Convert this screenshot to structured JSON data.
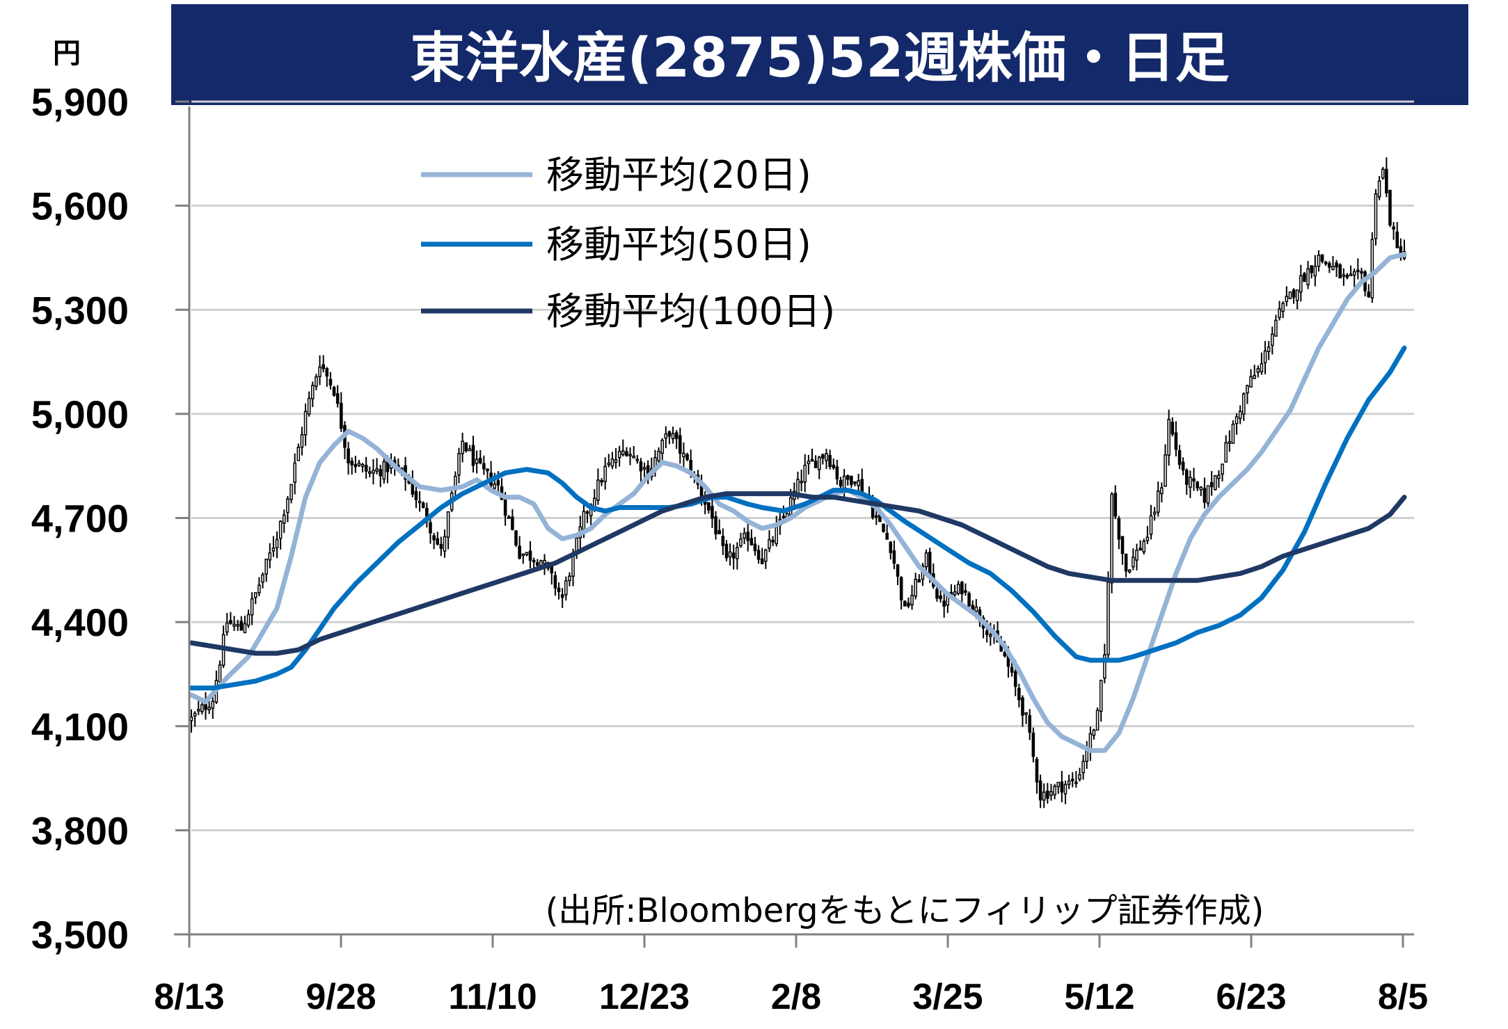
{
  "chart_data": {
    "type": "candlestick",
    "title": "東洋水産(2875)52週株価・日足",
    "ylabel": "円",
    "source": "(出所:Bloombergをもとにフィリップ証券作成)",
    "ylim": [
      3500,
      5900
    ],
    "yticks": [
      3500,
      3800,
      4100,
      4400,
      4700,
      5000,
      5300,
      5600,
      5900
    ],
    "ytick_labels": [
      "3,500",
      "3,800",
      "4,100",
      "4,400",
      "4,700",
      "5,000",
      "5,300",
      "5,600",
      "5,900"
    ],
    "x_tick_labels": [
      "8/13",
      "9/28",
      "11/10",
      "12/23",
      "2/8",
      "3/25",
      "5/12",
      "6/23",
      "8/5"
    ],
    "grid": true,
    "candles": {
      "name": "daily",
      "color": "#000000",
      "anchors": [
        [
          0,
          4120
        ],
        [
          6,
          4180
        ],
        [
          10,
          4400
        ],
        [
          14,
          4380
        ],
        [
          18,
          4480
        ],
        [
          24,
          4650
        ],
        [
          28,
          4800
        ],
        [
          32,
          5000
        ],
        [
          36,
          5150
        ],
        [
          40,
          5070
        ],
        [
          44,
          4870
        ],
        [
          50,
          4830
        ],
        [
          56,
          4850
        ],
        [
          60,
          4820
        ],
        [
          66,
          4700
        ],
        [
          70,
          4600
        ],
        [
          76,
          4920
        ],
        [
          80,
          4850
        ],
        [
          86,
          4790
        ],
        [
          92,
          4600
        ],
        [
          98,
          4580
        ],
        [
          104,
          4470
        ],
        [
          110,
          4700
        ],
        [
          116,
          4840
        ],
        [
          122,
          4900
        ],
        [
          128,
          4830
        ],
        [
          134,
          4950
        ],
        [
          140,
          4840
        ],
        [
          146,
          4700
        ],
        [
          150,
          4570
        ],
        [
          156,
          4650
        ],
        [
          160,
          4580
        ],
        [
          166,
          4700
        ],
        [
          172,
          4840
        ],
        [
          178,
          4890
        ],
        [
          182,
          4800
        ],
        [
          186,
          4820
        ],
        [
          192,
          4700
        ],
        [
          196,
          4620
        ],
        [
          200,
          4430
        ],
        [
          206,
          4580
        ],
        [
          210,
          4450
        ],
        [
          216,
          4500
        ],
        [
          222,
          4400
        ],
        [
          228,
          4300
        ],
        [
          234,
          4120
        ],
        [
          238,
          3900
        ],
        [
          244,
          3930
        ],
        [
          248,
          3940
        ],
        [
          254,
          4130
        ],
        [
          256,
          4300
        ],
        [
          258,
          4760
        ],
        [
          262,
          4550
        ],
        [
          268,
          4650
        ],
        [
          272,
          4800
        ],
        [
          274,
          4980
        ],
        [
          278,
          4820
        ],
        [
          284,
          4760
        ],
        [
          288,
          4840
        ],
        [
          292,
          4960
        ],
        [
          296,
          5080
        ],
        [
          300,
          5140
        ],
        [
          304,
          5270
        ],
        [
          308,
          5340
        ],
        [
          312,
          5400
        ],
        [
          316,
          5450
        ],
        [
          320,
          5420
        ],
        [
          324,
          5380
        ],
        [
          328,
          5400
        ],
        [
          330,
          5340
        ],
        [
          332,
          5650
        ],
        [
          334,
          5700
        ],
        [
          336,
          5560
        ],
        [
          338,
          5470
        ],
        [
          340,
          5470
        ]
      ]
    },
    "series": [
      {
        "name": "移動平均(20日)",
        "color": "#95B3D7",
        "points": [
          [
            0,
            4190
          ],
          [
            4,
            4170
          ],
          [
            10,
            4240
          ],
          [
            16,
            4300
          ],
          [
            20,
            4370
          ],
          [
            24,
            4440
          ],
          [
            28,
            4590
          ],
          [
            32,
            4760
          ],
          [
            36,
            4860
          ],
          [
            40,
            4910
          ],
          [
            44,
            4950
          ],
          [
            48,
            4930
          ],
          [
            52,
            4900
          ],
          [
            58,
            4840
          ],
          [
            64,
            4790
          ],
          [
            70,
            4780
          ],
          [
            76,
            4790
          ],
          [
            80,
            4810
          ],
          [
            84,
            4780
          ],
          [
            88,
            4760
          ],
          [
            92,
            4760
          ],
          [
            96,
            4740
          ],
          [
            100,
            4670
          ],
          [
            104,
            4640
          ],
          [
            108,
            4650
          ],
          [
            112,
            4670
          ],
          [
            116,
            4710
          ],
          [
            120,
            4740
          ],
          [
            124,
            4770
          ],
          [
            128,
            4820
          ],
          [
            132,
            4860
          ],
          [
            136,
            4850
          ],
          [
            140,
            4830
          ],
          [
            144,
            4790
          ],
          [
            148,
            4740
          ],
          [
            152,
            4720
          ],
          [
            156,
            4690
          ],
          [
            160,
            4670
          ],
          [
            164,
            4680
          ],
          [
            168,
            4700
          ],
          [
            172,
            4730
          ],
          [
            176,
            4750
          ],
          [
            180,
            4770
          ],
          [
            184,
            4780
          ],
          [
            188,
            4760
          ],
          [
            192,
            4730
          ],
          [
            196,
            4680
          ],
          [
            200,
            4620
          ],
          [
            204,
            4560
          ],
          [
            208,
            4520
          ],
          [
            212,
            4480
          ],
          [
            216,
            4450
          ],
          [
            220,
            4420
          ],
          [
            224,
            4380
          ],
          [
            228,
            4330
          ],
          [
            232,
            4260
          ],
          [
            236,
            4180
          ],
          [
            240,
            4110
          ],
          [
            244,
            4070
          ],
          [
            248,
            4050
          ],
          [
            252,
            4030
          ],
          [
            256,
            4030
          ],
          [
            260,
            4080
          ],
          [
            264,
            4180
          ],
          [
            268,
            4300
          ],
          [
            272,
            4420
          ],
          [
            276,
            4540
          ],
          [
            280,
            4640
          ],
          [
            284,
            4710
          ],
          [
            288,
            4760
          ],
          [
            292,
            4800
          ],
          [
            296,
            4840
          ],
          [
            300,
            4890
          ],
          [
            304,
            4950
          ],
          [
            308,
            5010
          ],
          [
            312,
            5100
          ],
          [
            316,
            5190
          ],
          [
            320,
            5260
          ],
          [
            324,
            5330
          ],
          [
            328,
            5380
          ],
          [
            332,
            5410
          ],
          [
            336,
            5450
          ],
          [
            340,
            5460
          ]
        ]
      },
      {
        "name": "移動平均(50日)",
        "color": "#0070C0",
        "points": [
          [
            0,
            4210
          ],
          [
            6,
            4210
          ],
          [
            12,
            4220
          ],
          [
            18,
            4230
          ],
          [
            24,
            4250
          ],
          [
            28,
            4270
          ],
          [
            32,
            4320
          ],
          [
            36,
            4380
          ],
          [
            40,
            4440
          ],
          [
            46,
            4510
          ],
          [
            52,
            4570
          ],
          [
            58,
            4630
          ],
          [
            64,
            4680
          ],
          [
            70,
            4730
          ],
          [
            76,
            4770
          ],
          [
            82,
            4800
          ],
          [
            88,
            4830
          ],
          [
            94,
            4840
          ],
          [
            100,
            4830
          ],
          [
            104,
            4800
          ],
          [
            108,
            4760
          ],
          [
            112,
            4730
          ],
          [
            116,
            4720
          ],
          [
            120,
            4730
          ],
          [
            128,
            4730
          ],
          [
            134,
            4730
          ],
          [
            140,
            4740
          ],
          [
            146,
            4760
          ],
          [
            150,
            4760
          ],
          [
            156,
            4740
          ],
          [
            160,
            4730
          ],
          [
            166,
            4720
          ],
          [
            172,
            4740
          ],
          [
            176,
            4760
          ],
          [
            180,
            4780
          ],
          [
            184,
            4780
          ],
          [
            188,
            4770
          ],
          [
            192,
            4750
          ],
          [
            196,
            4720
          ],
          [
            200,
            4690
          ],
          [
            206,
            4650
          ],
          [
            212,
            4610
          ],
          [
            218,
            4570
          ],
          [
            224,
            4540
          ],
          [
            230,
            4490
          ],
          [
            236,
            4430
          ],
          [
            242,
            4360
          ],
          [
            248,
            4300
          ],
          [
            252,
            4290
          ],
          [
            256,
            4290
          ],
          [
            260,
            4290
          ],
          [
            264,
            4300
          ],
          [
            270,
            4320
          ],
          [
            276,
            4340
          ],
          [
            282,
            4370
          ],
          [
            288,
            4390
          ],
          [
            294,
            4420
          ],
          [
            300,
            4470
          ],
          [
            306,
            4550
          ],
          [
            312,
            4660
          ],
          [
            318,
            4800
          ],
          [
            324,
            4930
          ],
          [
            330,
            5040
          ],
          [
            336,
            5120
          ],
          [
            340,
            5190
          ]
        ]
      },
      {
        "name": "移動平均(100日)",
        "color": "#1F3864",
        "points": [
          [
            0,
            4340
          ],
          [
            6,
            4330
          ],
          [
            12,
            4320
          ],
          [
            18,
            4310
          ],
          [
            24,
            4310
          ],
          [
            30,
            4320
          ],
          [
            36,
            4350
          ],
          [
            42,
            4370
          ],
          [
            48,
            4390
          ],
          [
            54,
            4410
          ],
          [
            60,
            4430
          ],
          [
            66,
            4450
          ],
          [
            72,
            4470
          ],
          [
            78,
            4490
          ],
          [
            84,
            4510
          ],
          [
            90,
            4530
          ],
          [
            96,
            4550
          ],
          [
            102,
            4570
          ],
          [
            108,
            4600
          ],
          [
            114,
            4630
          ],
          [
            120,
            4660
          ],
          [
            126,
            4690
          ],
          [
            132,
            4720
          ],
          [
            138,
            4740
          ],
          [
            144,
            4760
          ],
          [
            150,
            4770
          ],
          [
            156,
            4770
          ],
          [
            162,
            4770
          ],
          [
            168,
            4770
          ],
          [
            174,
            4760
          ],
          [
            180,
            4760
          ],
          [
            186,
            4750
          ],
          [
            192,
            4740
          ],
          [
            198,
            4730
          ],
          [
            204,
            4720
          ],
          [
            210,
            4700
          ],
          [
            216,
            4680
          ],
          [
            222,
            4650
          ],
          [
            228,
            4620
          ],
          [
            234,
            4590
          ],
          [
            240,
            4560
          ],
          [
            246,
            4540
          ],
          [
            252,
            4530
          ],
          [
            258,
            4520
          ],
          [
            264,
            4520
          ],
          [
            270,
            4520
          ],
          [
            276,
            4520
          ],
          [
            282,
            4520
          ],
          [
            288,
            4530
          ],
          [
            294,
            4540
          ],
          [
            300,
            4560
          ],
          [
            306,
            4590
          ],
          [
            312,
            4610
          ],
          [
            318,
            4630
          ],
          [
            324,
            4650
          ],
          [
            330,
            4670
          ],
          [
            336,
            4710
          ],
          [
            340,
            4760
          ]
        ]
      }
    ]
  }
}
